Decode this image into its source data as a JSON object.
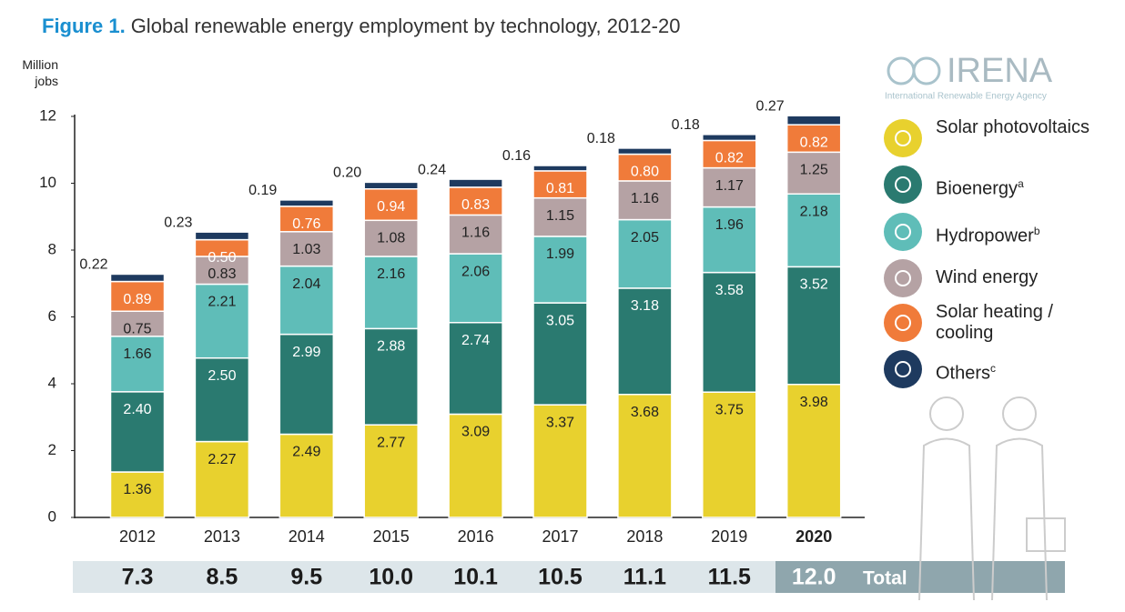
{
  "chart_data": {
    "type": "stacked_bar",
    "title_prefix": "Figure 1.",
    "title": "Global renewable energy employment by technology, 2012-20",
    "y_label": "Million jobs",
    "logo": {
      "name": "IRENA",
      "subtitle": "International Renewable Energy Agency"
    },
    "categories": [
      "2012",
      "2013",
      "2014",
      "2015",
      "2016",
      "2017",
      "2018",
      "2019",
      "2020"
    ],
    "ylim": [
      0,
      12
    ],
    "yticks": [
      0,
      2,
      4,
      6,
      8,
      10,
      12
    ],
    "grid": false,
    "series": [
      {
        "name": "Solar photovoltaics",
        "color": "#e8d12e",
        "label_color": "#222",
        "values": [
          1.36,
          2.27,
          2.49,
          2.77,
          3.09,
          3.37,
          3.68,
          3.75,
          3.98
        ],
        "value_labels": [
          "1.36",
          "2.27",
          "2.49",
          "2.77",
          "3.09",
          "3.37",
          "3.68",
          "3.75",
          "3.98"
        ]
      },
      {
        "name": "Bioenergy",
        "footnote": "a",
        "color": "#2a7a70",
        "label_color": "#ffffff",
        "values": [
          2.4,
          2.5,
          2.99,
          2.88,
          2.74,
          3.05,
          3.18,
          3.58,
          3.52
        ],
        "value_labels": [
          "2.40",
          "2.50",
          "2.99",
          "2.88",
          "2.74",
          "3.05",
          "3.18",
          "3.58",
          "3.52"
        ]
      },
      {
        "name": "Hydropower",
        "footnote": "b",
        "color": "#5fbdb8",
        "label_color": "#222",
        "values": [
          1.66,
          2.21,
          2.04,
          2.16,
          2.06,
          1.99,
          2.05,
          1.96,
          2.18
        ],
        "value_labels": [
          "1.66",
          "2.21",
          "2.04",
          "2.16",
          "2.06",
          "1.99",
          "2.05",
          "1.96",
          "2.18"
        ]
      },
      {
        "name": "Wind energy",
        "color": "#b5a2a4",
        "label_color": "#222",
        "values": [
          0.75,
          0.83,
          1.03,
          1.08,
          1.16,
          1.15,
          1.16,
          1.17,
          1.25
        ],
        "value_labels": [
          "0.75",
          "0.83",
          "1.03",
          "1.08",
          "1.16",
          "1.15",
          "1.16",
          "1.17",
          "1.25"
        ]
      },
      {
        "name": "Solar heating / cooling",
        "color": "#f07b3a",
        "label_color": "#ffffff",
        "values": [
          0.89,
          0.5,
          0.76,
          0.94,
          0.83,
          0.81,
          0.8,
          0.82,
          0.82
        ],
        "value_labels": [
          "0.89",
          "0.50",
          "0.76",
          "0.94",
          "0.83",
          "0.81",
          "0.80",
          "0.82",
          "0.82"
        ]
      },
      {
        "name": "Others",
        "footnote": "c",
        "color": "#1e3a5f",
        "label_color": "#222",
        "values": [
          0.22,
          0.23,
          0.19,
          0.2,
          0.24,
          0.16,
          0.18,
          0.18,
          0.27
        ],
        "value_labels": [
          "0.22",
          "0.23",
          "0.19",
          "0.20",
          "0.24",
          "0.16",
          "0.18",
          "0.18",
          "0.27"
        ]
      }
    ],
    "totals": {
      "label": "Total",
      "values": [
        7.3,
        8.5,
        9.5,
        10.0,
        10.1,
        10.5,
        11.1,
        11.5,
        12.0
      ],
      "value_labels": [
        "7.3",
        "8.5",
        "9.5",
        "10.0",
        "10.1",
        "10.5",
        "11.1",
        "11.5",
        "12.0"
      ]
    }
  }
}
